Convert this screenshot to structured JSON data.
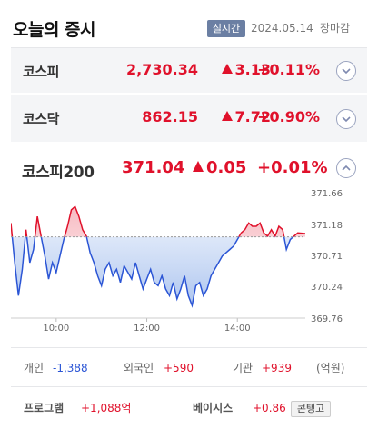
{
  "header": {
    "title": "오늘의 증시",
    "live_badge": "실시간",
    "date": "2024.05.14",
    "market_status": "장마감"
  },
  "indices": [
    {
      "name": "코스피",
      "price": "2,730.34",
      "change": "3.13",
      "rate": "+0.11%",
      "direction": "up",
      "expanded": false
    },
    {
      "name": "코스닥",
      "price": "862.15",
      "change": "7.72",
      "rate": "+0.90%",
      "direction": "up",
      "expanded": false
    }
  ],
  "kospi200": {
    "name": "코스피200",
    "price": "371.04",
    "change": "0.05",
    "rate": "+0.01%",
    "direction": "up",
    "expanded": true
  },
  "colors": {
    "up": "#e0112b",
    "down": "#2b55d5",
    "badge": "#6b7fa3"
  },
  "chart_data": {
    "type": "line",
    "title": "",
    "xlabel": "",
    "ylabel": "",
    "baseline": 370.99,
    "ylim": [
      369.76,
      371.66
    ],
    "y_ticks": [
      "371.66",
      "371.18",
      "370.71",
      "370.24",
      "369.76"
    ],
    "x_ticks": [
      "10:00",
      "12:00",
      "14:00"
    ],
    "x_range": [
      "09:00",
      "15:30"
    ],
    "series": [
      {
        "x": [
          "09:00",
          "09:05",
          "09:10",
          "09:15",
          "09:20",
          "09:25",
          "09:30",
          "09:35",
          "09:40",
          "09:45",
          "09:50",
          "09:55",
          "10:00",
          "10:05",
          "10:10",
          "10:15",
          "10:20",
          "10:25",
          "10:30",
          "10:35",
          "10:40",
          "10:45",
          "10:50",
          "10:55",
          "11:00",
          "11:05",
          "11:10",
          "11:15",
          "11:20",
          "11:25",
          "11:30",
          "11:35",
          "11:40",
          "11:45",
          "11:50",
          "11:55",
          "12:00",
          "12:05",
          "12:10",
          "12:15",
          "12:20",
          "12:25",
          "12:30",
          "12:35",
          "12:40",
          "12:45",
          "12:50",
          "12:55",
          "13:00",
          "13:05",
          "13:10",
          "13:15",
          "13:20",
          "13:25",
          "13:30",
          "13:35",
          "13:40",
          "13:45",
          "13:50",
          "13:55",
          "14:00",
          "14:05",
          "14:10",
          "14:15",
          "14:20",
          "14:25",
          "14:30",
          "14:35",
          "14:40",
          "14:45",
          "14:50",
          "14:55",
          "15:00",
          "15:05",
          "15:10",
          "15:15",
          "15:20",
          "15:30"
        ],
        "y": [
          371.2,
          370.6,
          370.1,
          370.5,
          371.1,
          370.6,
          370.8,
          371.3,
          371.0,
          370.7,
          370.35,
          370.6,
          370.45,
          370.7,
          370.95,
          371.15,
          371.4,
          371.45,
          371.3,
          371.1,
          371.0,
          370.75,
          370.6,
          370.4,
          370.25,
          370.5,
          370.6,
          370.4,
          370.5,
          370.3,
          370.55,
          370.45,
          370.35,
          370.6,
          370.4,
          370.2,
          370.35,
          370.5,
          370.3,
          370.25,
          370.4,
          370.2,
          370.1,
          370.3,
          370.05,
          370.2,
          370.4,
          370.1,
          369.95,
          370.25,
          370.3,
          370.1,
          370.2,
          370.4,
          370.5,
          370.6,
          370.7,
          370.75,
          370.8,
          370.85,
          370.95,
          371.05,
          371.1,
          371.2,
          371.15,
          371.15,
          371.2,
          371.05,
          371.0,
          371.1,
          371.0,
          371.15,
          371.1,
          370.8,
          370.95,
          371.0,
          371.05,
          371.04
        ]
      }
    ]
  },
  "investors": {
    "individual_label": "개인",
    "individual_value": "-1,388",
    "foreign_label": "외국인",
    "foreign_value": "+590",
    "institution_label": "기관",
    "institution_value": "+939",
    "unit": "(억원)"
  },
  "program": {
    "label": "프로그램",
    "value": "+1,088억"
  },
  "basis": {
    "label": "베이시스",
    "value": "+0.86",
    "button": "콘탱고"
  }
}
